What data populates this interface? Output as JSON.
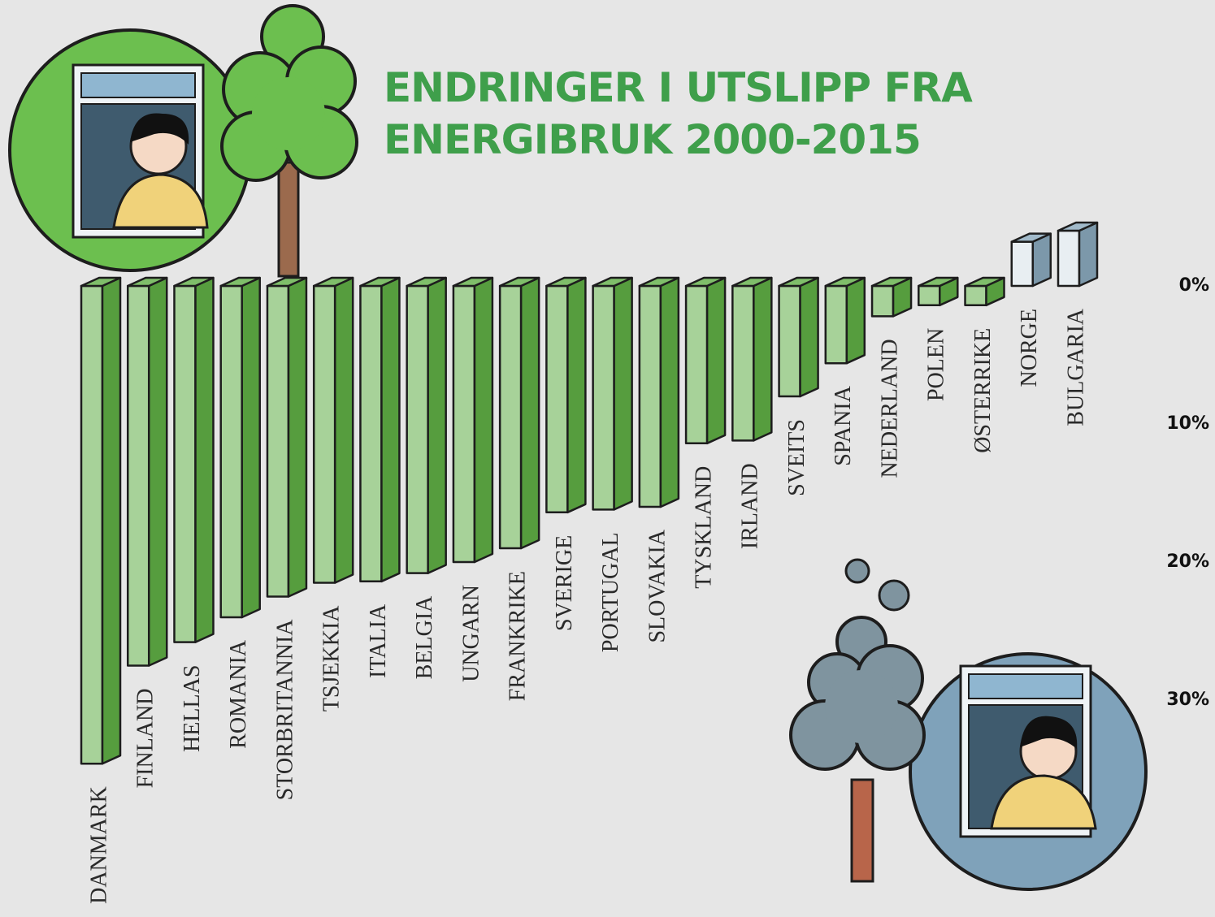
{
  "chart_data": {
    "type": "bar3d",
    "title": "ENDRINGER I UTSLIPP FRA ENERGIBRUK 2000-2015",
    "categories": [
      "DANMARK",
      "FINLAND",
      "HELLAS",
      "ROMANIA",
      "STORBRITANNIA",
      "TSJEKKIA",
      "ITALIA",
      "BELGIA",
      "UNGARN",
      "FRANKRIKE",
      "SVERIGE",
      "PORTUGAL",
      "SLOVAKIA",
      "TYSKLAND",
      "IRLAND",
      "SVEITS",
      "SPANIA",
      "NEDERLAND",
      "POLEN",
      "ØSTERRIKE",
      "NORGE",
      "BULGARIA"
    ],
    "values": [
      -34.6,
      -27.5,
      -25.8,
      -24,
      -22.5,
      -21.5,
      -21.4,
      -20.8,
      -20,
      -19,
      -16.4,
      -16.2,
      -16,
      -11.4,
      -11.2,
      -8,
      -5.6,
      -2.2,
      -1.4,
      -1.4,
      3.2,
      4
    ],
    "ylim": [
      -36,
      6
    ],
    "yticks": [
      {
        "value": 0,
        "label": "0%"
      },
      {
        "value": -10,
        "label": "10%"
      },
      {
        "value": -20,
        "label": "20%"
      },
      {
        "value": -30,
        "label": "30%"
      }
    ],
    "color_down": "#5fae45",
    "color_up": "#8aa9bd"
  }
}
